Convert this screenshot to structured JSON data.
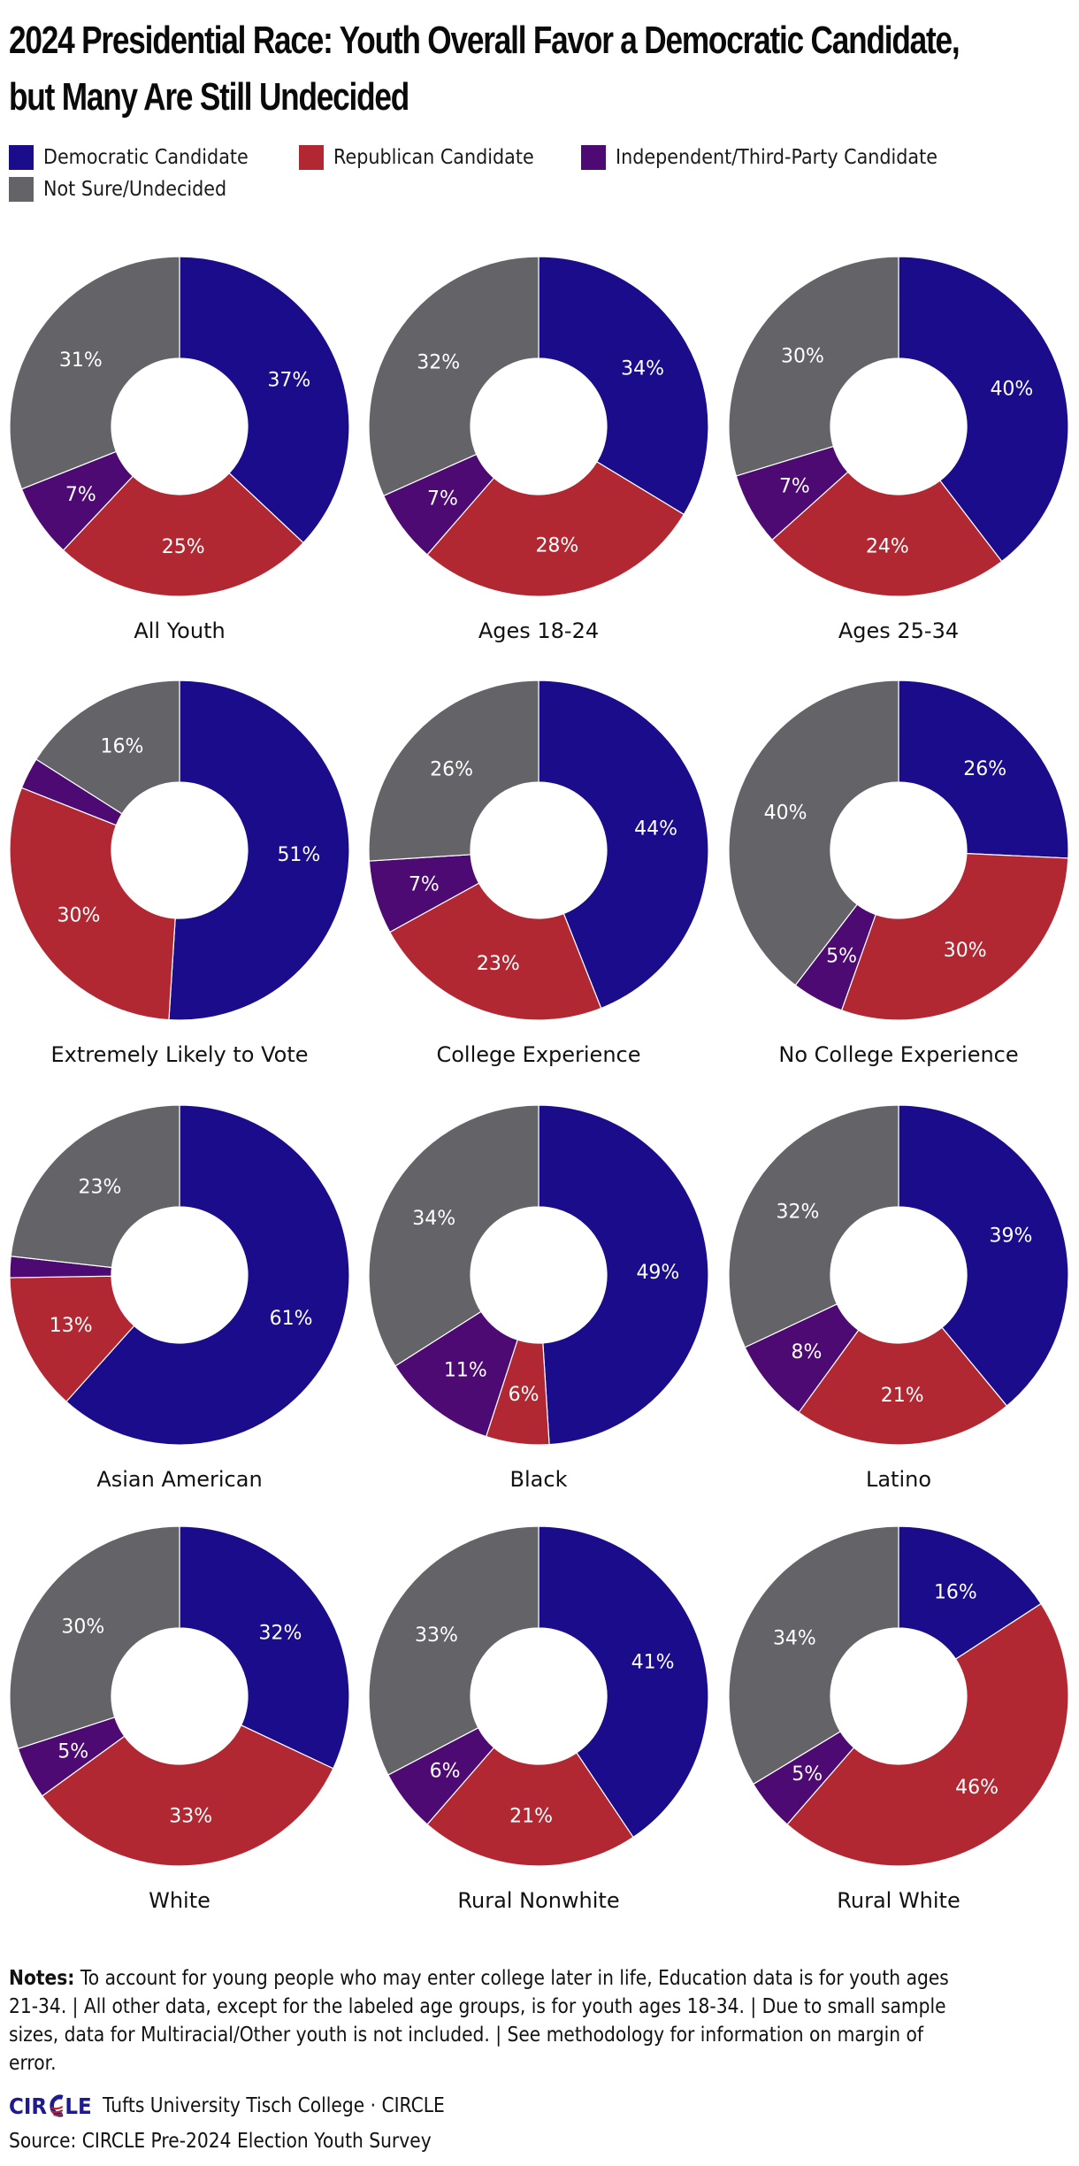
{
  "colors": {
    "democratic": "#1a0c8b",
    "republican": "#b22832",
    "independent": "#4e0a73",
    "undecided": "#646368",
    "separator": "#ffffff"
  },
  "legend": [
    {
      "key": "democratic",
      "label": "Democratic Candidate"
    },
    {
      "key": "republican",
      "label": "Republican Candidate"
    },
    {
      "key": "independent",
      "label": "Independent/Third-Party Candidate"
    },
    {
      "key": "undecided",
      "label": "Not Sure/Undecided"
    }
  ],
  "chart_data": {
    "type": "pie",
    "variant": "donut-small-multiples",
    "title": "2024 Presidential Race:  Youth Overall Favor a Democratic Candidate, but Many Are Still Undecided",
    "title_lines": [
      "2024 Presidential Race:  Youth Overall Favor a Democratic Candidate,",
      "but Many Are Still Undecided"
    ],
    "series_names": [
      "Democratic Candidate",
      "Republican Candidate",
      "Independent/Third-Party Candidate",
      "Not Sure/Undecided"
    ],
    "series_keys": [
      "democratic",
      "republican",
      "independent",
      "undecided"
    ],
    "unit": "%",
    "start": "top",
    "direction": "clockwise",
    "groups": [
      {
        "name": "All Youth",
        "values": [
          37,
          25,
          7,
          31
        ],
        "show_labels": [
          true,
          true,
          true,
          true
        ]
      },
      {
        "name": "Ages 18-24",
        "values": [
          34,
          28,
          7,
          32
        ],
        "show_labels": [
          true,
          true,
          true,
          true
        ]
      },
      {
        "name": "Ages 25-34",
        "values": [
          40,
          24,
          7,
          30
        ],
        "show_labels": [
          true,
          true,
          true,
          true
        ]
      },
      {
        "name": "Extremely Likely to Vote",
        "values": [
          51,
          30,
          3,
          16
        ],
        "show_labels": [
          true,
          true,
          false,
          true
        ]
      },
      {
        "name": "College Experience",
        "values": [
          44,
          23,
          7,
          26
        ],
        "show_labels": [
          true,
          true,
          true,
          true
        ]
      },
      {
        "name": "No College Experience",
        "values": [
          26,
          30,
          5,
          40
        ],
        "show_labels": [
          true,
          true,
          true,
          true
        ]
      },
      {
        "name": "Asian American",
        "values": [
          61,
          13,
          2,
          23
        ],
        "show_labels": [
          true,
          true,
          false,
          true
        ]
      },
      {
        "name": "Black",
        "values": [
          49,
          6,
          11,
          34
        ],
        "show_labels": [
          true,
          true,
          true,
          true
        ]
      },
      {
        "name": "Latino",
        "values": [
          39,
          21,
          8,
          32
        ],
        "show_labels": [
          true,
          true,
          true,
          true
        ]
      },
      {
        "name": "White",
        "values": [
          32,
          33,
          5,
          30
        ],
        "show_labels": [
          true,
          true,
          true,
          true
        ]
      },
      {
        "name": "Rural Nonwhite",
        "values": [
          41,
          21,
          6,
          33
        ],
        "show_labels": [
          true,
          true,
          true,
          true
        ]
      },
      {
        "name": "Rural White",
        "values": [
          16,
          46,
          5,
          34
        ],
        "show_labels": [
          true,
          true,
          true,
          true
        ]
      }
    ]
  },
  "notes": {
    "label": "Notes:",
    "text": " To account for young people who may enter college later in life, Education data is for youth ages 21-34. | All other data, except for the labeled age groups, is for youth ages 18-34. | Due to small sample sizes, data for Multiracial/Other youth is not included. | See methodology for information on margin of error."
  },
  "footer": {
    "logo_text": "CIRCLE",
    "logo_prefix": "CIR",
    "logo_suffix": "LE",
    "org": "Tufts University Tisch College · CIRCLE",
    "source": "Source: CIRCLE Pre-2024 Election Youth Survey"
  }
}
